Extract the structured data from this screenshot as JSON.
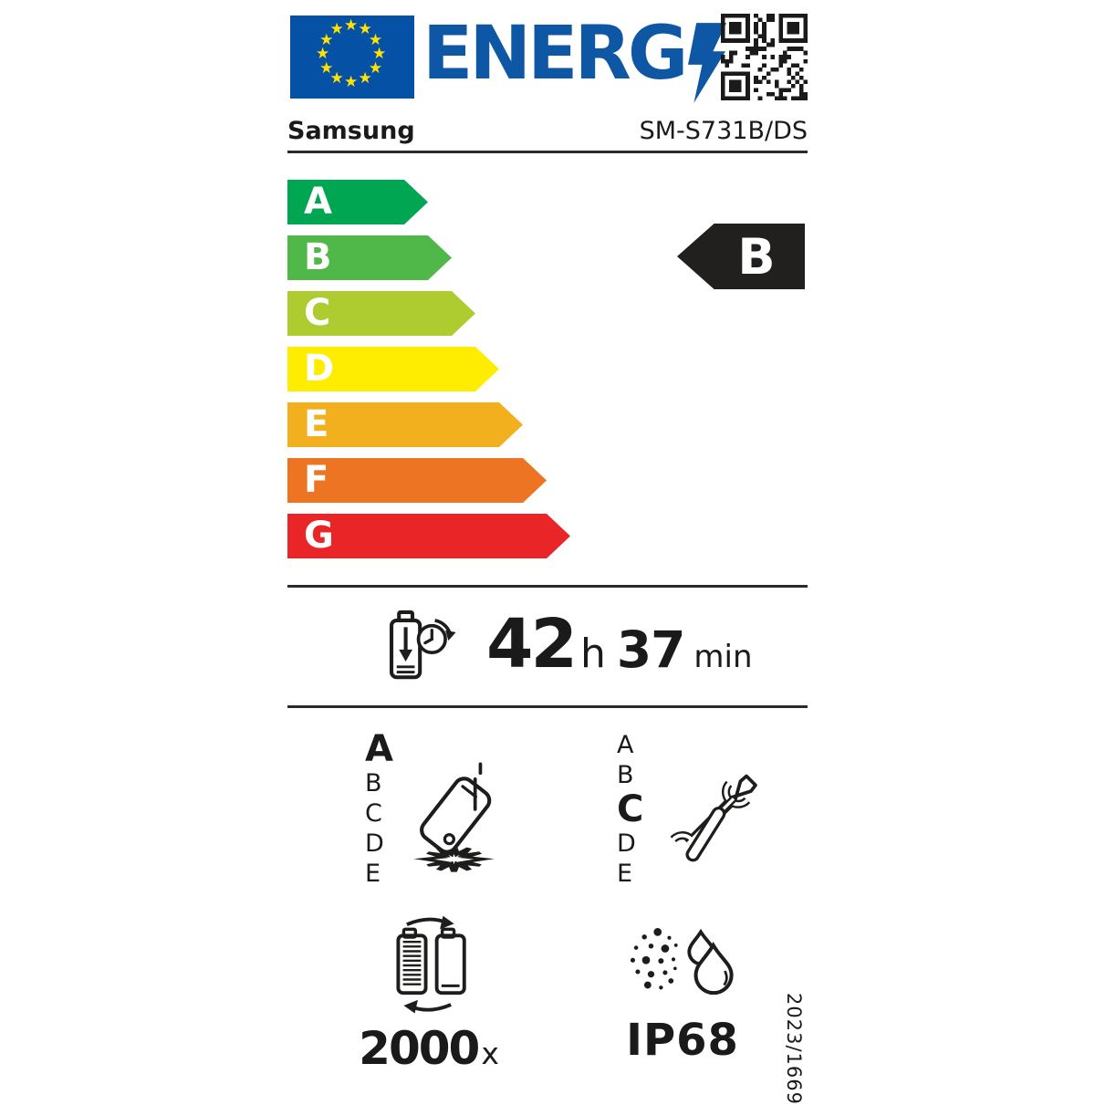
{
  "header": {
    "logo_text": "ENERG",
    "brand": "Samsung",
    "model": "SM-S731B/DS",
    "flag_color": "#0551a5",
    "star_color": "#ffe200",
    "logo_color": "#0e57a5"
  },
  "energy_scale": {
    "classes": [
      {
        "label": "A",
        "color": "#00a651"
      },
      {
        "label": "B",
        "color": "#50b848"
      },
      {
        "label": "C",
        "color": "#aecb2f"
      },
      {
        "label": "D",
        "color": "#ffed00"
      },
      {
        "label": "E",
        "color": "#f2b01e"
      },
      {
        "label": "F",
        "color": "#ec7423"
      },
      {
        "label": "G",
        "color": "#e92528"
      }
    ],
    "rating": "B",
    "rating_bg": "#221f1f"
  },
  "battery_endurance": {
    "hours": "42",
    "hours_unit": "h",
    "minutes": "37",
    "minutes_unit": "min"
  },
  "drop_reliability": {
    "scale": [
      "A",
      "B",
      "C",
      "D",
      "E"
    ],
    "rating": "A"
  },
  "repairability": {
    "scale": [
      "A",
      "B",
      "C",
      "D",
      "E"
    ],
    "rating": "C"
  },
  "battery_cycles": {
    "value": "2000",
    "unit": "x"
  },
  "ingress_protection": {
    "rating": "IP68"
  },
  "regulation_number": "2023/1669"
}
